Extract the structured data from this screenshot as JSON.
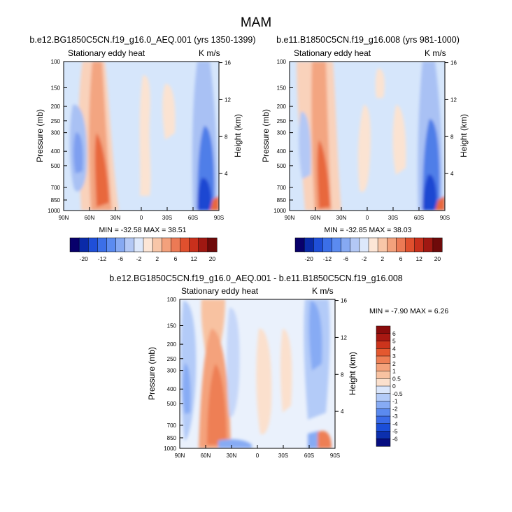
{
  "figure": {
    "title": "MAM"
  },
  "colors": {
    "background": "#ffffff",
    "field_base": "#d6e6fb",
    "panel_scale": [
      "#08006b",
      "#0a2aa8",
      "#1f4fd8",
      "#3b6fe8",
      "#5b8bf0",
      "#86a9f2",
      "#b3c8f5",
      "#dde8fb",
      "#fde6d6",
      "#f8c6a8",
      "#f3a17c",
      "#ec7a55",
      "#e0502e",
      "#c8301c",
      "#a01812",
      "#6e0a0a"
    ],
    "diff_scale": [
      "#060d80",
      "#0c2fae",
      "#1b4ed8",
      "#3a6be8",
      "#5b8aef",
      "#87abf4",
      "#b3cbf8",
      "#dae6fb",
      "#fbe0cd",
      "#f8c2a1",
      "#f4a27b",
      "#ee7f55",
      "#e4582f",
      "#cc341c",
      "#a81812",
      "#8a0c0c"
    ]
  },
  "chart_data": [
    {
      "type": "heatmap",
      "title": "b.e12.BG1850C5CN.f19_g16.0_AEQ.001 (yrs 1350-1399)",
      "left_label": "Stationary eddy heat",
      "right_label": "K m/s",
      "ylabel": "Pressure (mb)",
      "right_axis_label": "Height (km)",
      "x_ticks": [
        "90N",
        "60N",
        "30N",
        "0",
        "30S",
        "60S",
        "90S"
      ],
      "y_ticks": [
        "100",
        "150",
        "200",
        "250",
        "300",
        "400",
        "500",
        "700",
        "850",
        "1000"
      ],
      "height_ticks": [
        "16",
        "12",
        "8",
        "4"
      ],
      "stats_text": "MIN = -32.58   MAX = 38.51",
      "min": -32.58,
      "max": 38.51,
      "colorbar_labels": [
        "-20",
        "-12",
        "-6",
        "-2",
        "2",
        "6",
        "12",
        "20"
      ]
    },
    {
      "type": "heatmap",
      "title": "b.e11.B1850C5CN.f19_g16.008 (yrs 981-1000)",
      "left_label": "Stationary eddy heat",
      "right_label": "K m/s",
      "ylabel": "Pressure (mb)",
      "right_axis_label": "Height (km)",
      "x_ticks": [
        "90N",
        "60N",
        "30N",
        "0",
        "30S",
        "60S",
        "90S"
      ],
      "y_ticks": [
        "100",
        "150",
        "200",
        "250",
        "300",
        "400",
        "500",
        "700",
        "850",
        "1000"
      ],
      "height_ticks": [
        "16",
        "12",
        "8",
        "4"
      ],
      "stats_text": "MIN = -32.85   MAX = 38.03",
      "min": -32.85,
      "max": 38.03,
      "colorbar_labels": [
        "-20",
        "-12",
        "-6",
        "-2",
        "2",
        "6",
        "12",
        "20"
      ]
    },
    {
      "type": "heatmap",
      "title": "b.e12.BG1850C5CN.f19_g16.0_AEQ.001 - b.e11.B1850C5CN.f19_g16.008",
      "left_label": "Stationary eddy heat",
      "right_label": "K m/s",
      "ylabel": "Pressure (mb)",
      "right_axis_label": "Height (km)",
      "x_ticks": [
        "90N",
        "60N",
        "30N",
        "0",
        "30S",
        "60S",
        "90S"
      ],
      "y_ticks": [
        "100",
        "150",
        "200",
        "250",
        "300",
        "400",
        "500",
        "700",
        "850",
        "1000"
      ],
      "height_ticks": [
        "16",
        "12",
        "8",
        "4"
      ],
      "stats_text": "MIN = -7.90   MAX =  6.26",
      "min": -7.9,
      "max": 6.26,
      "colorbar_labels": [
        "6",
        "5",
        "4",
        "3",
        "2",
        "1",
        "0.5",
        "0",
        "-0.5",
        "-1",
        "-2",
        "-3",
        "-4",
        "-5",
        "-6"
      ]
    }
  ]
}
